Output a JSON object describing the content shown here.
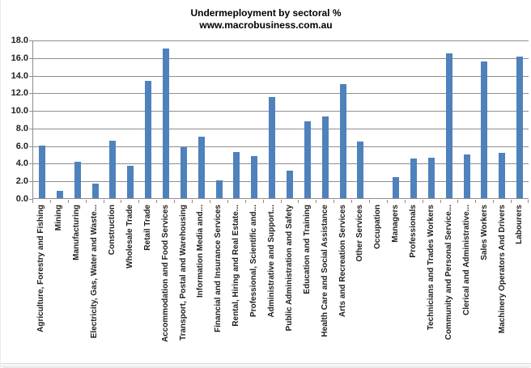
{
  "chart_data": {
    "type": "bar",
    "title": "Undermeployment by sectoral %",
    "subtitle": "www.macrobusiness.com.au",
    "categories": [
      "Agriculture, Forestry and Fishing",
      "Mining",
      "Manufacturing",
      "Electricity, Gas, Water and Waste...",
      "Construction",
      "Wholesale Trade",
      "Retail Trade",
      "Accommodation and Food Services",
      "Transport, Postal and Warehousing",
      "Information Media and...",
      "Financial and Insurance Services",
      "Rental, Hiring and Real Estate...",
      "Professional, Scientific and...",
      "Administrative and Support...",
      "Public Administration and Safety",
      "Education and Training",
      "Health Care and Social Assistance",
      "Arts and Recreation Services",
      "Other Services",
      "Occupation",
      "Managers",
      "Professionals",
      "Technicians and Trades Workers",
      "Community and Personal Service...",
      "Clerical and Administrative...",
      "Sales Workers",
      "Machinery Operators And Drivers",
      "Labourers"
    ],
    "values": [
      6.0,
      0.8,
      4.2,
      1.7,
      6.6,
      3.7,
      13.4,
      17.1,
      5.8,
      7.0,
      2.0,
      5.3,
      4.8,
      11.5,
      3.1,
      8.8,
      9.3,
      13.0,
      6.5,
      null,
      2.4,
      4.5,
      4.6,
      16.5,
      5.0,
      15.6,
      5.2,
      16.2
    ],
    "ylim": [
      0,
      18
    ],
    "ytick_step": 2,
    "ytick_labels": [
      "18.0",
      "16.0",
      "14.0",
      "12.0",
      "10.0",
      "8.0",
      "6.0",
      "4.0",
      "2.0",
      "0.0"
    ],
    "bar_color": "#4F81BD",
    "gridline_color": "#8E8E8E",
    "axis_text_color": "#1F1F1F",
    "grid": true,
    "legend": "none",
    "xlabel": "",
    "ylabel": ""
  }
}
